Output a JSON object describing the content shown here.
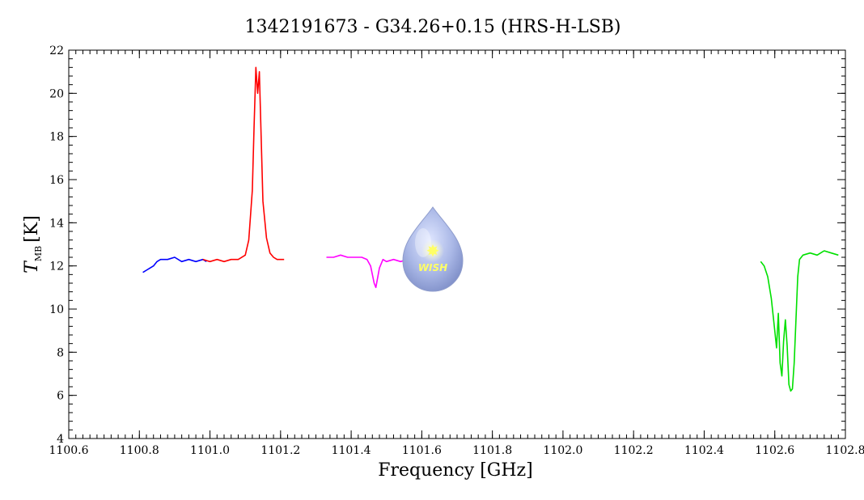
{
  "chart_data": {
    "type": "line",
    "title": "1342191673 - G34.26+0.15 (HRS-H-LSB)",
    "xlabel": "Frequency [GHz]",
    "ylabel": {
      "symbol": "T",
      "subscript": "MB",
      "unit": "[K]"
    },
    "xlim": [
      1100.6,
      1102.8
    ],
    "ylim": [
      4,
      22
    ],
    "xticks": [
      "1100.6",
      "1100.8",
      "1101.0",
      "1101.2",
      "1101.4",
      "1101.6",
      "1101.8",
      "1102.0",
      "1102.2",
      "1102.4",
      "1102.6",
      "1102.8"
    ],
    "yticks": [
      "4",
      "6",
      "8",
      "10",
      "12",
      "14",
      "16",
      "18",
      "20",
      "22"
    ],
    "grid": false,
    "logo": {
      "text": "WISH",
      "color": "#aab8e0"
    },
    "series": [
      {
        "color": "#0000ff",
        "x": [
          1100.81,
          1100.82,
          1100.83,
          1100.84,
          1100.85,
          1100.86,
          1100.88,
          1100.9,
          1100.92,
          1100.94,
          1100.96,
          1100.98,
          1100.99
        ],
        "y": [
          11.7,
          11.8,
          11.9,
          12.0,
          12.2,
          12.3,
          12.3,
          12.4,
          12.2,
          12.3,
          12.2,
          12.3,
          12.2
        ]
      },
      {
        "color": "#ff0000",
        "x": [
          1100.98,
          1101.0,
          1101.02,
          1101.04,
          1101.06,
          1101.08,
          1101.1,
          1101.11,
          1101.12,
          1101.125,
          1101.13,
          1101.135,
          1101.14,
          1101.145,
          1101.15,
          1101.16,
          1101.17,
          1101.18,
          1101.19,
          1101.21
        ],
        "y": [
          12.3,
          12.2,
          12.3,
          12.2,
          12.3,
          12.3,
          12.5,
          13.2,
          15.5,
          18.5,
          21.2,
          20.0,
          21.0,
          18.0,
          15.0,
          13.3,
          12.6,
          12.4,
          12.3,
          12.3
        ]
      },
      {
        "color": "#ff00ff",
        "x": [
          1101.33,
          1101.35,
          1101.37,
          1101.39,
          1101.41,
          1101.43,
          1101.445,
          1101.455,
          1101.465,
          1101.47,
          1101.48,
          1101.49,
          1101.5,
          1101.52,
          1101.54,
          1101.56
        ],
        "y": [
          12.4,
          12.4,
          12.5,
          12.4,
          12.4,
          12.4,
          12.3,
          12.0,
          11.2,
          11.0,
          11.9,
          12.3,
          12.2,
          12.3,
          12.2,
          12.3
        ]
      },
      {
        "color": "#00e000",
        "x": [
          1102.56,
          1102.57,
          1102.58,
          1102.59,
          1102.6,
          1102.605,
          1102.61,
          1102.615,
          1102.62,
          1102.625,
          1102.63,
          1102.635,
          1102.64,
          1102.645,
          1102.65,
          1102.655,
          1102.66,
          1102.665,
          1102.67,
          1102.68,
          1102.7,
          1102.72,
          1102.74,
          1102.76,
          1102.78
        ],
        "y": [
          12.2,
          12.0,
          11.5,
          10.5,
          9.0,
          8.2,
          9.8,
          7.5,
          6.9,
          8.5,
          9.5,
          8.3,
          6.5,
          6.2,
          6.3,
          7.5,
          9.5,
          11.5,
          12.3,
          12.5,
          12.6,
          12.5,
          12.7,
          12.6,
          12.5
        ]
      }
    ]
  }
}
